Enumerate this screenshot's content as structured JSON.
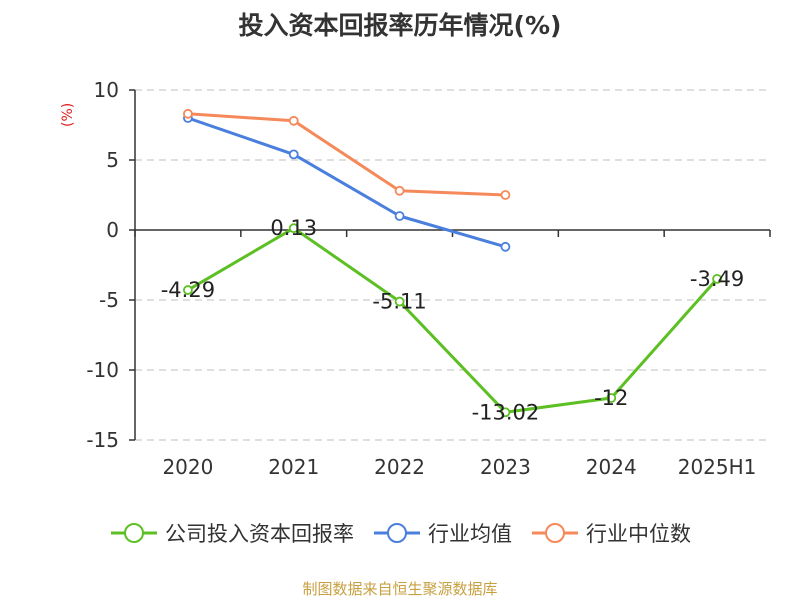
{
  "title": "投入资本回报率历年情况(%)",
  "y_unit": "(%)",
  "source": "制图数据来自恒生聚源数据库",
  "colors": {
    "company": "#5cbf22",
    "industry_avg": "#4a7fde",
    "industry_median": "#f5895a",
    "axis": "#333333",
    "grid": "#cccccc",
    "unit": "#e02020",
    "source": "#c8a040"
  },
  "chart_data": {
    "type": "line",
    "title": "投入资本回报率历年情况(%)",
    "ylabel": "(%)",
    "ylim": [
      -15,
      10
    ],
    "yticks": [
      10,
      5,
      0,
      -5,
      -10,
      -15
    ],
    "grid": true,
    "legend_position": "bottom",
    "categories": [
      "2020",
      "2021",
      "2022",
      "2023",
      "2024",
      "2025H1"
    ],
    "series": [
      {
        "name": "公司投入资本回报率",
        "values": [
          -4.29,
          0.13,
          -5.11,
          -13.02,
          -12,
          -3.49
        ],
        "labels": [
          "-4.29",
          "0.13",
          "-5.11",
          "-13.02",
          "-12",
          "-3.49"
        ]
      },
      {
        "name": "行业均值",
        "values": [
          8.0,
          5.4,
          1.0,
          -1.2,
          null,
          null
        ]
      },
      {
        "name": "行业中位数",
        "values": [
          8.3,
          7.8,
          2.8,
          2.5,
          null,
          null
        ]
      }
    ]
  }
}
